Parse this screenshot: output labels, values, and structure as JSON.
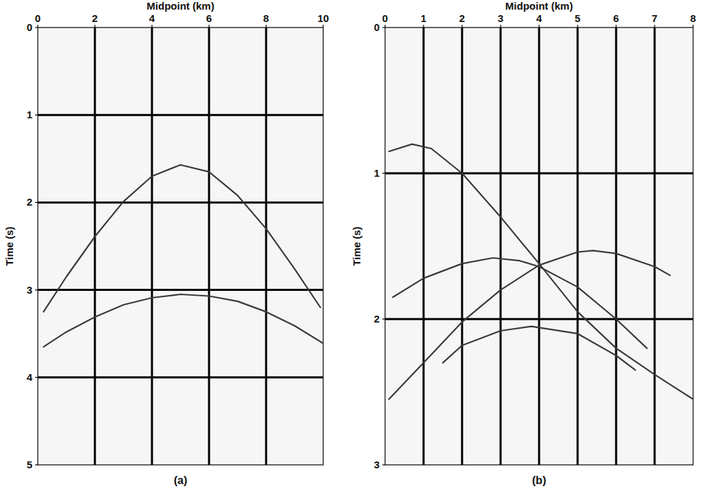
{
  "chart_data": [
    {
      "type": "line",
      "title": "(a)",
      "x_label": "Midpoint (km)",
      "y_label": "Time (s)",
      "xlim": [
        0,
        10
      ],
      "ylim": [
        0,
        5
      ],
      "xticks": [
        0,
        2,
        4,
        6,
        8,
        10
      ],
      "yticks": [
        0,
        1,
        2,
        3,
        4,
        5
      ],
      "grid": true,
      "color": "#3a3a3a",
      "series": [
        {
          "x": [
            0.2,
            1,
            2,
            3,
            4,
            5,
            6,
            7,
            8,
            9,
            9.9
          ],
          "values": [
            3.25,
            2.85,
            2.39,
            1.99,
            1.7,
            1.57,
            1.65,
            1.92,
            2.3,
            2.76,
            3.2
          ]
        },
        {
          "x": [
            0.2,
            1,
            2,
            3,
            4,
            5,
            6,
            7,
            8,
            9,
            10
          ],
          "values": [
            3.65,
            3.48,
            3.31,
            3.17,
            3.09,
            3.05,
            3.07,
            3.13,
            3.25,
            3.41,
            3.61
          ]
        }
      ]
    },
    {
      "type": "line",
      "title": "(b)",
      "x_label": "Midpoint (km)",
      "y_label": "Time (s)",
      "xlim": [
        0,
        8
      ],
      "ylim": [
        0,
        3
      ],
      "xticks": [
        0,
        1,
        2,
        3,
        4,
        5,
        6,
        7,
        8
      ],
      "yticks": [
        0,
        1,
        2,
        3
      ],
      "grid": true,
      "color": "#3a3a3a",
      "series": [
        {
          "x": [
            0.1,
            0.7,
            1.2,
            2,
            3,
            4,
            5,
            6,
            7,
            8
          ],
          "values": [
            0.85,
            0.8,
            0.83,
            1.0,
            1.3,
            1.62,
            1.95,
            2.2,
            2.38,
            2.55
          ]
        },
        {
          "x": [
            0.1,
            1,
            2,
            3,
            4,
            5,
            5.4,
            6,
            7,
            7.4
          ],
          "values": [
            2.55,
            2.3,
            2.02,
            1.8,
            1.63,
            1.54,
            1.53,
            1.55,
            1.64,
            1.7
          ]
        },
        {
          "x": [
            0.2,
            1,
            2,
            2.8,
            3.5,
            4,
            5,
            6,
            6.8
          ],
          "values": [
            1.85,
            1.72,
            1.62,
            1.58,
            1.6,
            1.64,
            1.78,
            2.0,
            2.2
          ]
        },
        {
          "x": [
            1.5,
            2,
            3,
            3.8,
            5,
            6,
            6.5
          ],
          "values": [
            2.3,
            2.18,
            2.08,
            2.05,
            2.1,
            2.25,
            2.35
          ]
        }
      ]
    }
  ]
}
